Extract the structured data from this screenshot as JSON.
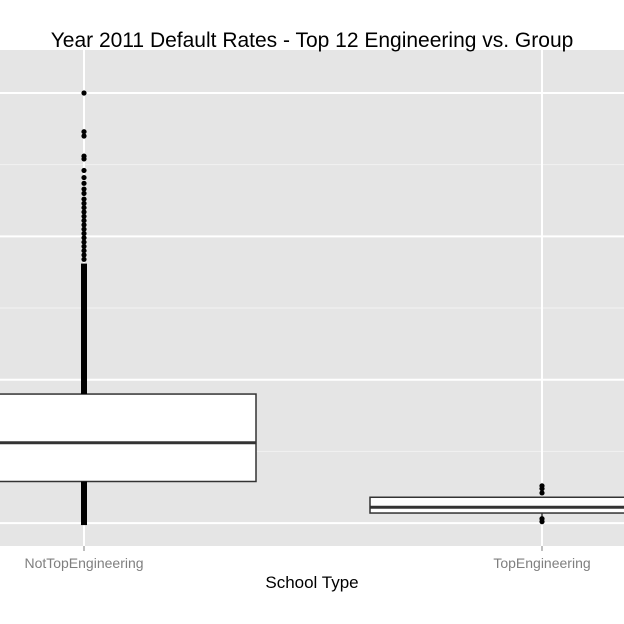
{
  "chart_data": {
    "type": "box",
    "title": "Year 2011 Default Rates - Top 12 Engineering  vs. Group",
    "xlabel": "School Type",
    "ylabel": "",
    "categories": [
      "NotTopEngineering",
      "TopEngineering"
    ],
    "ylim": [
      -0.016,
      0.33
    ],
    "grid": true,
    "legend": "none",
    "series": [
      {
        "category": "NotTopEngineering",
        "whisker_low": 0.0,
        "q1": 0.029,
        "median": 0.056,
        "q3": 0.09,
        "whisker_high": 0.181,
        "outliers_low": [],
        "outliers_high": [
          0.184,
          0.187,
          0.19,
          0.193,
          0.196,
          0.199,
          0.202,
          0.205,
          0.208,
          0.211,
          0.214,
          0.217,
          0.22,
          0.223,
          0.226,
          0.23,
          0.233,
          0.237,
          0.241,
          0.246,
          0.254,
          0.256,
          0.273,
          0.27,
          0.3
        ]
      },
      {
        "category": "TopEngineering",
        "whisker_low": 0.004,
        "q1": 0.007,
        "median": 0.011,
        "q3": 0.018,
        "whisker_high": 0.018,
        "outliers_low": [
          0.001,
          0.003
        ],
        "outliers_high": [
          0.021,
          0.024,
          0.026
        ]
      }
    ],
    "colors": {
      "panel": "#e5e5e5",
      "grid_major": "#ffffff",
      "grid_minor": "#f2f2f2",
      "box_fill": "#ffffff",
      "box_stroke": "#333333",
      "point": "#000000"
    }
  }
}
